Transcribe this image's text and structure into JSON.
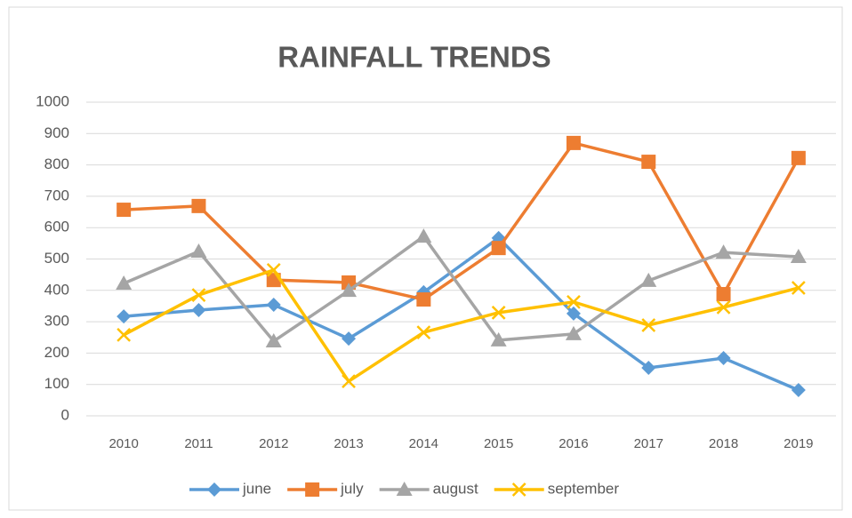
{
  "chart_data": {
    "type": "line",
    "title": "RAINFALL  TRENDS",
    "categories": [
      "2010",
      "2011",
      "2012",
      "2013",
      "2014",
      "2015",
      "2016",
      "2017",
      "2018",
      "2019"
    ],
    "series": [
      {
        "name": "june",
        "color": "#5b9bd5",
        "marker": "diamond",
        "values": [
          317,
          337,
          354,
          246,
          394,
          567,
          326,
          153,
          184,
          82
        ]
      },
      {
        "name": "july",
        "color": "#ed7d31",
        "marker": "square",
        "values": [
          657,
          669,
          433,
          425,
          371,
          535,
          870,
          810,
          388,
          822
        ]
      },
      {
        "name": "august",
        "color": "#a5a5a5",
        "marker": "triangle",
        "values": [
          422,
          524,
          238,
          399,
          572,
          241,
          261,
          431,
          521,
          507
        ]
      },
      {
        "name": "september",
        "color": "#ffc000",
        "marker": "x",
        "values": [
          258,
          385,
          465,
          110,
          266,
          329,
          363,
          289,
          346,
          408
        ]
      }
    ],
    "ylim": [
      0,
      1000
    ],
    "yticks": [
      0,
      100,
      200,
      300,
      400,
      500,
      600,
      700,
      800,
      900,
      1000
    ],
    "grid": true,
    "legend": "bottom"
  }
}
